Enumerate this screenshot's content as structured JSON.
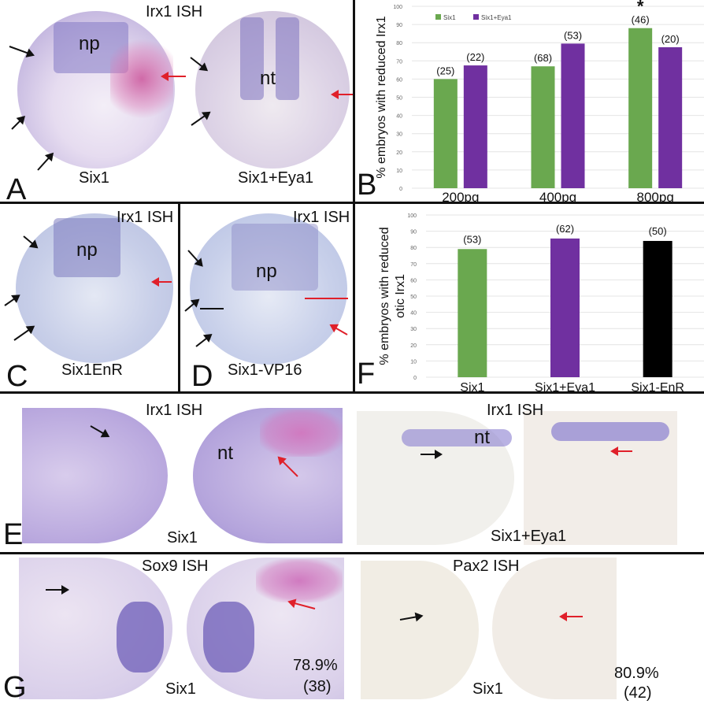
{
  "panels": {
    "A": {
      "letter": "A",
      "title": "Irx1 ISH",
      "left_label": "Six1",
      "right_label": "Six1+Eya1",
      "left_tag": "np",
      "right_tag": "nt"
    },
    "C": {
      "letter": "C",
      "title": "Irx1 ISH",
      "label": "Six1EnR",
      "tag": "np"
    },
    "D": {
      "letter": "D",
      "title": "Irx1 ISH",
      "label": "Six1-VP16",
      "tag": "np"
    },
    "E": {
      "letter": "E",
      "left_title": "Irx1 ISH",
      "right_title": "Irx1 ISH",
      "left_label": "Six1",
      "right_label": "Six1+Eya1",
      "left_tag": "nt",
      "right_tag": "nt"
    },
    "G": {
      "letter": "G",
      "left_title": "Sox9 ISH",
      "right_title": "Pax2 ISH",
      "left_label": "Six1",
      "right_label": "Six1",
      "left_percent": "78.9%",
      "left_n": "(38)",
      "right_percent": "80.9%",
      "right_n": "(42)"
    }
  },
  "colors": {
    "six1": "#6aa84f",
    "six1_eya1": "#7030a0",
    "six1_enr": "#000000",
    "arrow_red": "#e0202a",
    "arrow_black": "#111111"
  },
  "chart_data": [
    {
      "panel": "B",
      "type": "bar",
      "title": "",
      "xlabel": "",
      "ylabel": "% embryos with reduced Irx1",
      "categories": [
        "200pg",
        "400pg",
        "800pg"
      ],
      "series": [
        {
          "name": "Six1",
          "values": [
            60,
            67,
            88
          ],
          "n_labels": [
            "(25)",
            "(68)",
            "(46)"
          ]
        },
        {
          "name": "Six1+Eya1",
          "values": [
            67.5,
            79.5,
            77.5
          ],
          "n_labels": [
            "(22)",
            "(53)",
            "(20)"
          ]
        }
      ],
      "annotations": [
        {
          "category": "800pg",
          "series": "Six1",
          "text": "*"
        }
      ],
      "ylim": [
        0,
        100
      ],
      "yticks": [
        "0",
        "10",
        "20",
        "30",
        "40",
        "50",
        "60",
        "70",
        "80",
        "90",
        "100"
      ],
      "grid": true,
      "legend": "top-left"
    },
    {
      "panel": "F",
      "type": "bar",
      "title": "",
      "xlabel": "",
      "ylabel": "% embryos with reduced otic Irx1",
      "ylabel_lines": [
        "% embryos with reduced",
        "otic Irx1"
      ],
      "categories": [
        "Six1",
        "Six1+Eya1",
        "Six1-EnR"
      ],
      "values": [
        79,
        85.5,
        84
      ],
      "n_labels": [
        "(53)",
        "(62)",
        "(50)"
      ],
      "ylim": [
        0,
        100
      ],
      "yticks": [
        "0",
        "10",
        "20",
        "30",
        "40",
        "50",
        "60",
        "70",
        "80",
        "90",
        "100"
      ],
      "grid": true,
      "legend": "none"
    }
  ]
}
